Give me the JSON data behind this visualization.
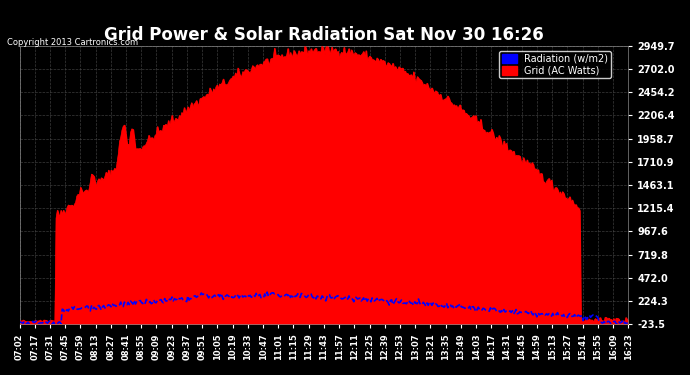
{
  "title": "Grid Power & Solar Radiation Sat Nov 30 16:26",
  "copyright": "Copyright 2013 Cartronics.com",
  "legend_radiation": "Radiation (w/m2)",
  "legend_grid": "Grid (AC Watts)",
  "yticks": [
    -23.5,
    224.3,
    472.0,
    719.8,
    967.6,
    1215.4,
    1463.1,
    1710.9,
    1958.7,
    2206.4,
    2454.2,
    2702.0,
    2949.7
  ],
  "ymin": -23.5,
  "ymax": 2949.7,
  "xtick_labels": [
    "07:02",
    "07:17",
    "07:31",
    "07:45",
    "07:59",
    "08:13",
    "08:27",
    "08:41",
    "08:55",
    "09:09",
    "09:23",
    "09:37",
    "09:51",
    "10:05",
    "10:19",
    "10:33",
    "10:47",
    "11:01",
    "11:15",
    "11:29",
    "11:43",
    "11:57",
    "12:11",
    "12:25",
    "12:39",
    "12:53",
    "13:07",
    "13:21",
    "13:35",
    "13:49",
    "14:03",
    "14:17",
    "14:31",
    "14:45",
    "14:59",
    "15:13",
    "15:27",
    "15:41",
    "15:55",
    "16:09",
    "16:23"
  ],
  "bg_color": "#000000",
  "plot_bg_color": "#000000",
  "grid_color": "#555555",
  "title_color": "#ffffff",
  "tick_color": "#ffffff",
  "red_color": "#ff0000",
  "blue_color": "#0000ff",
  "radiation_fill_alpha": 0.0,
  "grid_fill_alpha": 1.0
}
